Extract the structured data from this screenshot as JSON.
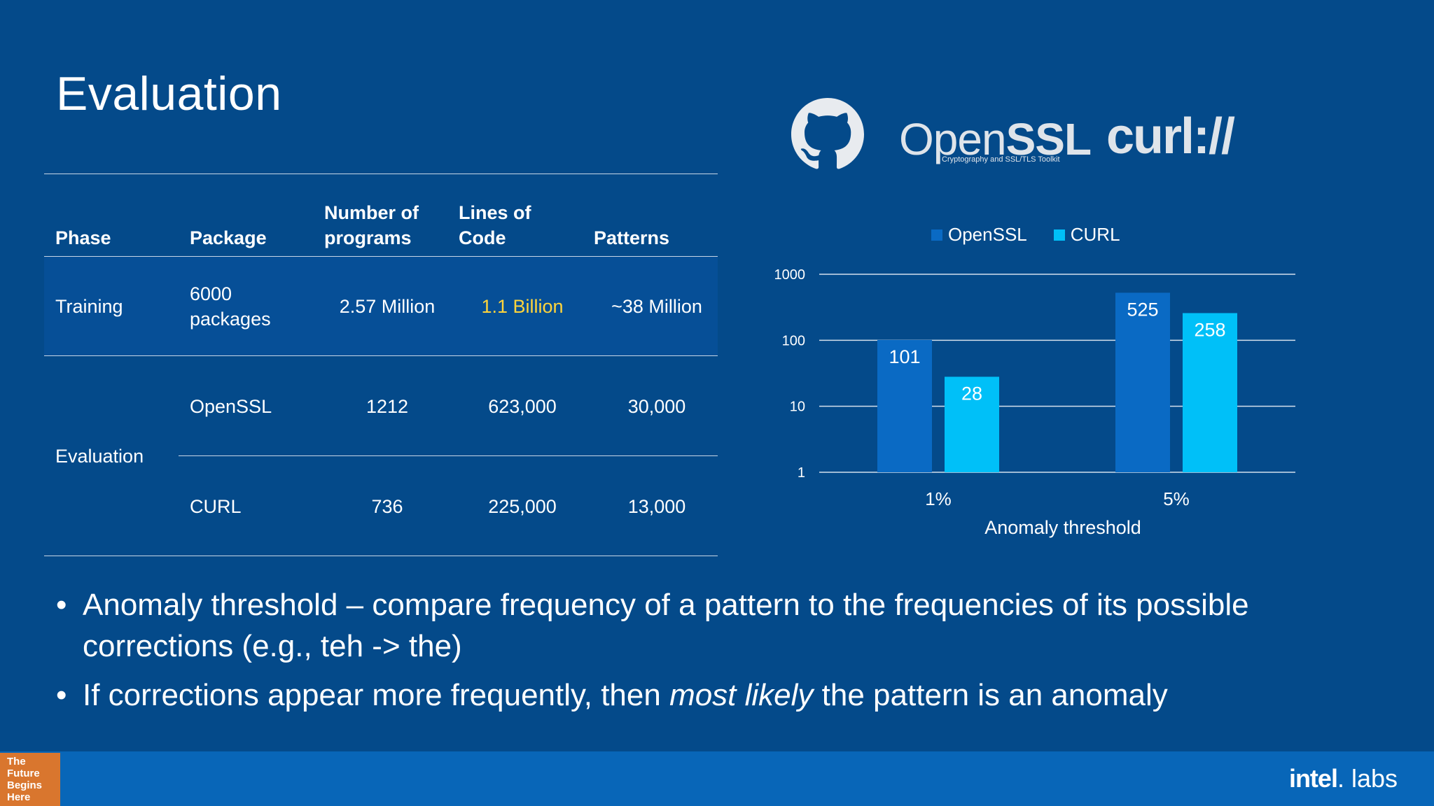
{
  "slide": {
    "title": "Evaluation"
  },
  "table": {
    "headers": {
      "phase": "Phase",
      "package": "Package",
      "programs_line1": "Number of",
      "programs_line2": "programs",
      "loc_line1": "Lines of",
      "loc_line2": "Code",
      "patterns": "Patterns"
    },
    "training": {
      "phase": "Training",
      "package_line1": "6000",
      "package_line2": "packages",
      "programs": "2.57 Million",
      "loc": "1.1 Billion",
      "patterns": "~38 Million"
    },
    "evaluation": {
      "phase": "Evaluation",
      "rows": [
        {
          "package": "OpenSSL",
          "programs": "1212",
          "loc": "623,000",
          "patterns": "30,000"
        },
        {
          "package": "CURL",
          "programs": "736",
          "loc": "225,000",
          "patterns": "13,000"
        }
      ]
    }
  },
  "logos": {
    "github": "github-icon",
    "openssl_light": "Open",
    "openssl_bold": "SSL",
    "openssl_sub": "Cryptography and SSL/TLS Toolkit",
    "curl": "curl://"
  },
  "chart_data": {
    "type": "bar",
    "categories": [
      "1%",
      "5%"
    ],
    "series": [
      {
        "name": "OpenSSL",
        "values": [
          101,
          525
        ],
        "color": "#0a6ac4"
      },
      {
        "name": "CURL",
        "values": [
          28,
          258
        ],
        "color": "#00c0f8"
      }
    ],
    "xlabel": "Anomaly threshold",
    "yscale": "log",
    "ylim": [
      1,
      1000
    ],
    "yticks": [
      "1",
      "10",
      "100",
      "1000"
    ],
    "legend": "top",
    "grid": true
  },
  "bullets": {
    "b1": "Anomaly threshold – compare frequency of a pattern to the frequencies of its possible corrections (e.g., teh -> the)",
    "b2_pre": "If corrections appear more frequently, then ",
    "b2_em": "most likely",
    "b2_post": " the pattern is an anomaly"
  },
  "footer": {
    "badge_line1": "The",
    "badge_line2": "Future",
    "badge_line3": "Begins",
    "badge_line4": "Here",
    "brand_bold": "intel",
    "brand_light": ". labs"
  },
  "colors": {
    "background": "#044a8a",
    "highlight": "#ffd43b",
    "footer": "#0866b8",
    "badge": "#d9762e"
  }
}
